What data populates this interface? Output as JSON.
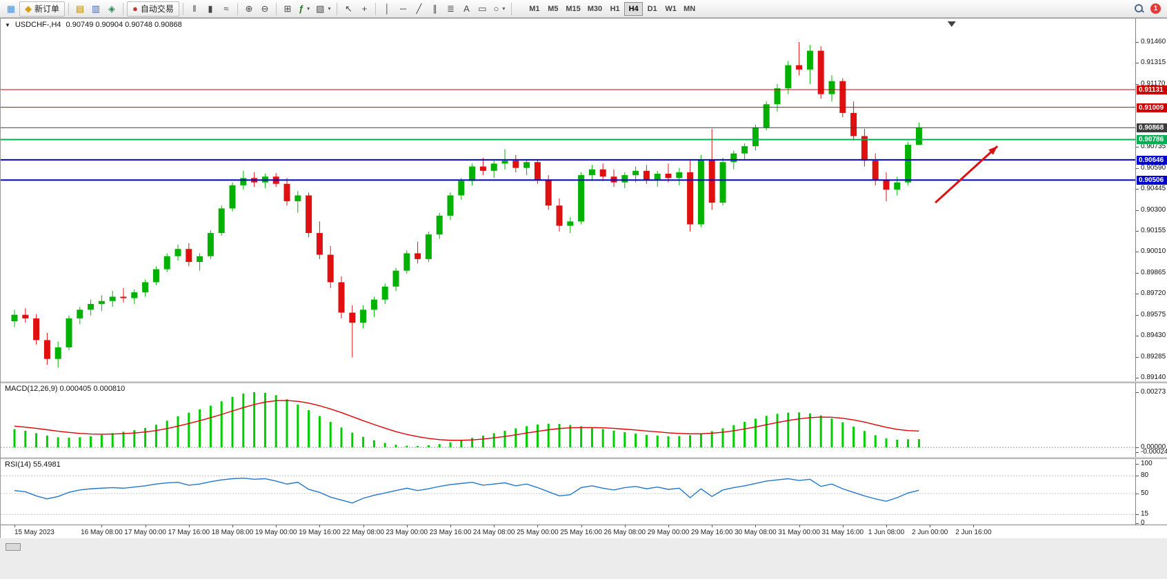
{
  "toolbar": {
    "new_order_label": "新订单",
    "autotrade_label": "自动交易",
    "timeframes": [
      "M1",
      "M5",
      "M15",
      "M30",
      "H1",
      "H4",
      "D1",
      "W1",
      "MN"
    ],
    "active_timeframe": "H4",
    "notification_badge": "1",
    "notification_color": "#e53935",
    "icons": {
      "new_chart": "▦",
      "new_order": "◆",
      "profiles": "▤",
      "data_window": "▥",
      "navigator": "◈",
      "autotrade": "●",
      "ohlc_bars": "‖",
      "candlesticks": "▮",
      "line_chart": "≈",
      "zoom_in": "⊕",
      "zoom_out": "⊖",
      "tile_windows": "⊞",
      "indicators": "ƒ",
      "templates": "▧",
      "cursor": "↖",
      "crosshair": "+",
      "vertical_line": "│",
      "horizontal_line": "─",
      "trendline": "╱",
      "channel": "∥",
      "fibonacci": "≣",
      "text_tool": "A",
      "label_tool": "▭",
      "shapes": "○",
      "dropdown": "▾",
      "chart_menu": "▼"
    }
  },
  "chart": {
    "symbol_title": "USDCHF-,H4",
    "ohlc": "0.90749 0.90904 0.90748 0.90868",
    "price_axis_ticks": [
      "0.91460",
      "0.91315",
      "0.91170",
      "0.90735",
      "0.90590",
      "0.90445",
      "0.90300",
      "0.90155",
      "0.90010",
      "0.89865",
      "0.89720",
      "0.89575",
      "0.89430",
      "0.89285",
      "0.89140"
    ],
    "price_levels": [
      {
        "label": "0.91131",
        "price": 0.91131,
        "color": "#cc0000",
        "width": 1
      },
      {
        "label": "0.91009",
        "price": 0.91009,
        "color": "#cc0000",
        "width": 1
      },
      {
        "label": "0.90868",
        "price": 0.90868,
        "color": "#3c3c3c",
        "width": 1
      },
      {
        "label": "0.90786",
        "price": 0.90786,
        "color": "#00b050",
        "width": 2
      },
      {
        "label": "0.90646",
        "price": 0.90646,
        "color": "#0000cc",
        "width": 2
      },
      {
        "label": "0.90506",
        "price": 0.90506,
        "color": "#0000cc",
        "width": 2
      }
    ],
    "arrow": {
      "from": {
        "index": 84.5,
        "price": 0.9035
      },
      "to": {
        "index": 90.2,
        "price": 0.9074
      },
      "color": "#dd1111"
    },
    "shift_marker_index": 86
  },
  "macd": {
    "label": "MACD(12,26,9) 0.000405 0.000810",
    "axis": [
      {
        "value": 0.00273,
        "label": "0.00273"
      },
      {
        "value": 0,
        "label": "0.00000"
      },
      {
        "value": -0.00024,
        "label": "-0.00024"
      }
    ]
  },
  "rsi": {
    "label": "RSI(14) 55.4981",
    "axis": [
      {
        "value": 100,
        "label": "100"
      },
      {
        "value": 80,
        "label": "80"
      },
      {
        "value": 50,
        "label": "50"
      },
      {
        "value": 15,
        "label": "15"
      },
      {
        "value": 0,
        "label": "0"
      }
    ],
    "dashed_levels": [
      80,
      50,
      15
    ]
  },
  "time_axis": [
    {
      "index": 0,
      "label": "15 May 2023"
    },
    {
      "index": 8,
      "label": "16 May 08:00"
    },
    {
      "index": 12,
      "label": "17 May 00:00"
    },
    {
      "index": 16,
      "label": "17 May 16:00"
    },
    {
      "index": 20,
      "label": "18 May 08:00"
    },
    {
      "index": 24,
      "label": "19 May 00:00"
    },
    {
      "index": 28,
      "label": "19 May 16:00"
    },
    {
      "index": 32,
      "label": "22 May 08:00"
    },
    {
      "index": 36,
      "label": "23 May 00:00"
    },
    {
      "index": 40,
      "label": "23 May 16:00"
    },
    {
      "index": 44,
      "label": "24 May 08:00"
    },
    {
      "index": 48,
      "label": "25 May 00:00"
    },
    {
      "index": 52,
      "label": "25 May 16:00"
    },
    {
      "index": 56,
      "label": "26 May 08:00"
    },
    {
      "index": 60,
      "label": "29 May 00:00"
    },
    {
      "index": 64,
      "label": "29 May 16:00"
    },
    {
      "index": 68,
      "label": "30 May 08:00"
    },
    {
      "index": 72,
      "label": "31 May 00:00"
    },
    {
      "index": 76,
      "label": "31 May 16:00"
    },
    {
      "index": 80,
      "label": "1 Jun 08:00"
    },
    {
      "index": 84,
      "label": "2 Jun 00:00"
    },
    {
      "index": 88,
      "label": "2 Jun 16:00"
    }
  ],
  "chart_data": {
    "type": "candlestick",
    "title": "USDCHF-,H4",
    "symbol": "USDCHF",
    "timeframe": "H4",
    "ylim": [
      0.8914,
      0.9146
    ],
    "colors": {
      "up": "#00b200",
      "down": "#e01010",
      "macd_histogram": "#00cc00",
      "macd_signal": "#e00000",
      "rsi_line": "#2277cc"
    },
    "ohlc": [
      [
        0.8953,
        0.8961,
        0.8949,
        0.89575
      ],
      [
        0.89575,
        0.8962,
        0.8952,
        0.8955
      ],
      [
        0.8955,
        0.8958,
        0.8937,
        0.894
      ],
      [
        0.894,
        0.8945,
        0.8923,
        0.8927
      ],
      [
        0.8927,
        0.8939,
        0.8921,
        0.8935
      ],
      [
        0.8935,
        0.8957,
        0.8933,
        0.8955
      ],
      [
        0.8955,
        0.8963,
        0.8951,
        0.8961
      ],
      [
        0.8961,
        0.8968,
        0.8957,
        0.8965
      ],
      [
        0.8965,
        0.8971,
        0.896,
        0.8967
      ],
      [
        0.8967,
        0.8974,
        0.8963,
        0.897
      ],
      [
        0.897,
        0.8976,
        0.8966,
        0.8969
      ],
      [
        0.8969,
        0.8975,
        0.8965,
        0.8973
      ],
      [
        0.8973,
        0.8982,
        0.897,
        0.898
      ],
      [
        0.898,
        0.8991,
        0.8978,
        0.8989
      ],
      [
        0.8989,
        0.9,
        0.8987,
        0.8998
      ],
      [
        0.8998,
        0.9006,
        0.8995,
        0.9003
      ],
      [
        0.9003,
        0.9007,
        0.8991,
        0.8994
      ],
      [
        0.8994,
        0.9,
        0.8988,
        0.8998
      ],
      [
        0.8998,
        0.9016,
        0.8996,
        0.9014
      ],
      [
        0.9014,
        0.9033,
        0.9012,
        0.9031
      ],
      [
        0.9031,
        0.9049,
        0.9029,
        0.9047
      ],
      [
        0.9047,
        0.9057,
        0.9044,
        0.9052
      ],
      [
        0.9052,
        0.9056,
        0.9046,
        0.9049
      ],
      [
        0.9049,
        0.9055,
        0.9045,
        0.9053
      ],
      [
        0.9053,
        0.90555,
        0.9046,
        0.9048
      ],
      [
        0.9048,
        0.9052,
        0.9033,
        0.9036
      ],
      [
        0.9036,
        0.9043,
        0.9028,
        0.904
      ],
      [
        0.904,
        0.9042,
        0.9011,
        0.9014
      ],
      [
        0.9014,
        0.9022,
        0.8996,
        0.8999
      ],
      [
        0.8999,
        0.9005,
        0.8976,
        0.898
      ],
      [
        0.898,
        0.8984,
        0.8955,
        0.8959
      ],
      [
        0.8959,
        0.8964,
        0.8928,
        0.8952
      ],
      [
        0.8952,
        0.8964,
        0.8948,
        0.8961
      ],
      [
        0.8961,
        0.897,
        0.8956,
        0.8968
      ],
      [
        0.8968,
        0.8979,
        0.8965,
        0.8977
      ],
      [
        0.8977,
        0.899,
        0.8974,
        0.8988
      ],
      [
        0.8988,
        0.9002,
        0.8986,
        0.9
      ],
      [
        0.9,
        0.9008,
        0.8993,
        0.8996
      ],
      [
        0.8996,
        0.9015,
        0.8994,
        0.9013
      ],
      [
        0.9013,
        0.9028,
        0.901,
        0.9026
      ],
      [
        0.9026,
        0.9042,
        0.9023,
        0.904
      ],
      [
        0.904,
        0.9052,
        0.9037,
        0.905
      ],
      [
        0.905,
        0.9062,
        0.9047,
        0.906
      ],
      [
        0.906,
        0.9066,
        0.9054,
        0.9057
      ],
      [
        0.9057,
        0.9064,
        0.9052,
        0.9062
      ],
      [
        0.9062,
        0.9072,
        0.9058,
        0.9064
      ],
      [
        0.9064,
        0.9068,
        0.9056,
        0.9059
      ],
      [
        0.9059,
        0.9065,
        0.9054,
        0.9063
      ],
      [
        0.9063,
        0.9065,
        0.9048,
        0.9051
      ],
      [
        0.9051,
        0.9054,
        0.903,
        0.9033
      ],
      [
        0.9033,
        0.9038,
        0.9015,
        0.9019
      ],
      [
        0.9019,
        0.9025,
        0.9014,
        0.9022
      ],
      [
        0.9022,
        0.9056,
        0.902,
        0.9054
      ],
      [
        0.9054,
        0.9061,
        0.905,
        0.9058
      ],
      [
        0.9058,
        0.9062,
        0.905,
        0.9053
      ],
      [
        0.9053,
        0.9058,
        0.9046,
        0.9049
      ],
      [
        0.9049,
        0.9056,
        0.9045,
        0.9054
      ],
      [
        0.9054,
        0.906,
        0.9049,
        0.9057
      ],
      [
        0.9057,
        0.9061,
        0.9048,
        0.9051
      ],
      [
        0.9051,
        0.9057,
        0.9046,
        0.9055
      ],
      [
        0.9055,
        0.9062,
        0.9049,
        0.9052
      ],
      [
        0.9052,
        0.9059,
        0.9047,
        0.9056
      ],
      [
        0.9056,
        0.9064,
        0.9015,
        0.902
      ],
      [
        0.902,
        0.9068,
        0.9018,
        0.9065
      ],
      [
        0.9065,
        0.9086,
        0.903,
        0.9035
      ],
      [
        0.9035,
        0.9066,
        0.9033,
        0.9063
      ],
      [
        0.9063,
        0.9071,
        0.9058,
        0.9069
      ],
      [
        0.9069,
        0.9076,
        0.9064,
        0.9074
      ],
      [
        0.9074,
        0.9089,
        0.9071,
        0.9087
      ],
      [
        0.9087,
        0.9105,
        0.9085,
        0.9103
      ],
      [
        0.9103,
        0.9117,
        0.9098,
        0.9114
      ],
      [
        0.9114,
        0.9133,
        0.911,
        0.913
      ],
      [
        0.913,
        0.9146,
        0.9123,
        0.9127
      ],
      [
        0.9127,
        0.9144,
        0.9117,
        0.914
      ],
      [
        0.914,
        0.9143,
        0.9107,
        0.911
      ],
      [
        0.911,
        0.9123,
        0.9105,
        0.9119
      ],
      [
        0.9119,
        0.9121,
        0.9094,
        0.9097
      ],
      [
        0.9097,
        0.9105,
        0.9078,
        0.9081
      ],
      [
        0.9081,
        0.9086,
        0.906,
        0.9064
      ],
      [
        0.9064,
        0.9069,
        0.9047,
        0.9051
      ],
      [
        0.9051,
        0.9056,
        0.9036,
        0.9044
      ],
      [
        0.9044,
        0.9053,
        0.904,
        0.9049
      ],
      [
        0.9049,
        0.9077,
        0.9047,
        0.9075
      ],
      [
        0.90749,
        0.90904,
        0.90748,
        0.90868
      ]
    ],
    "indicators": {
      "macd": {
        "ylim": [
          -0.00024,
          0.00273
        ],
        "current_main": 0.000405,
        "current_signal": 0.00081,
        "histogram": [
          0.0009,
          0.00082,
          0.0007,
          0.00058,
          0.0005,
          0.00048,
          0.0005,
          0.00055,
          0.00062,
          0.0007,
          0.00077,
          0.00085,
          0.00096,
          0.00112,
          0.00132,
          0.00154,
          0.00172,
          0.00188,
          0.00206,
          0.00228,
          0.0025,
          0.00266,
          0.00273,
          0.0027,
          0.00258,
          0.00238,
          0.00212,
          0.00184,
          0.00155,
          0.00126,
          0.00098,
          0.00073,
          0.00052,
          0.00035,
          0.00022,
          0.00013,
          8e-05,
          7e-05,
          0.0001,
          0.00016,
          0.00025,
          0.00036,
          0.00047,
          0.00058,
          0.0007,
          0.00082,
          0.00094,
          0.00105,
          0.00113,
          0.00117,
          0.00116,
          0.00111,
          0.00104,
          0.00098,
          0.00091,
          0.00083,
          0.00075,
          0.00068,
          0.00062,
          0.00058,
          0.00055,
          0.00056,
          0.0006,
          0.00068,
          0.0008,
          0.00094,
          0.0011,
          0.00126,
          0.00142,
          0.00156,
          0.00166,
          0.00172,
          0.00173,
          0.00168,
          0.00158,
          0.00143,
          0.00124,
          0.00103,
          0.00081,
          0.0006,
          0.00044,
          0.00038,
          0.0004,
          0.000405
        ],
        "signal": [
          0.00105,
          0.001,
          0.00094,
          0.00087,
          0.0008,
          0.00074,
          0.00069,
          0.00066,
          0.00065,
          0.00066,
          0.00068,
          0.00071,
          0.00076,
          0.00083,
          0.00093,
          0.00105,
          0.00118,
          0.00132,
          0.00147,
          0.00163,
          0.0018,
          0.00197,
          0.00212,
          0.00224,
          0.00231,
          0.00232,
          0.00228,
          0.00219,
          0.00206,
          0.0019,
          0.00172,
          0.00152,
          0.00132,
          0.00113,
          0.00095,
          0.00078,
          0.00064,
          0.00053,
          0.00044,
          0.00038,
          0.00035,
          0.00035,
          0.00037,
          0.00041,
          0.00047,
          0.00054,
          0.00062,
          0.00071,
          0.00079,
          0.00087,
          0.00093,
          0.00097,
          0.00098,
          0.00098,
          0.00097,
          0.00094,
          0.0009,
          0.00086,
          0.00081,
          0.00077,
          0.00072,
          0.00069,
          0.00067,
          0.00067,
          0.0007,
          0.00075,
          0.00082,
          0.00091,
          0.00101,
          0.00112,
          0.00123,
          0.00133,
          0.00141,
          0.00147,
          0.0015,
          0.00149,
          0.00144,
          0.00136,
          0.00125,
          0.00112,
          0.00099,
          0.00089,
          0.00083,
          0.00081
        ]
      },
      "rsi": {
        "ylim": [
          0,
          100
        ],
        "current": 55.4981,
        "values": [
          55,
          53,
          46,
          41,
          45,
          52,
          56,
          58,
          59,
          60,
          59,
          61,
          63,
          66,
          68,
          69,
          64,
          66,
          70,
          73,
          75,
          76,
          74,
          75,
          71,
          66,
          69,
          57,
          52,
          44,
          39,
          34,
          42,
          47,
          51,
          55,
          59,
          55,
          58,
          62,
          65,
          67,
          69,
          64,
          66,
          68,
          63,
          66,
          60,
          53,
          46,
          48,
          60,
          63,
          59,
          56,
          60,
          62,
          58,
          61,
          57,
          59,
          43,
          58,
          45,
          56,
          60,
          63,
          67,
          71,
          73,
          75,
          72,
          74,
          62,
          66,
          58,
          52,
          46,
          41,
          37,
          43,
          51,
          55.4981
        ]
      }
    }
  }
}
